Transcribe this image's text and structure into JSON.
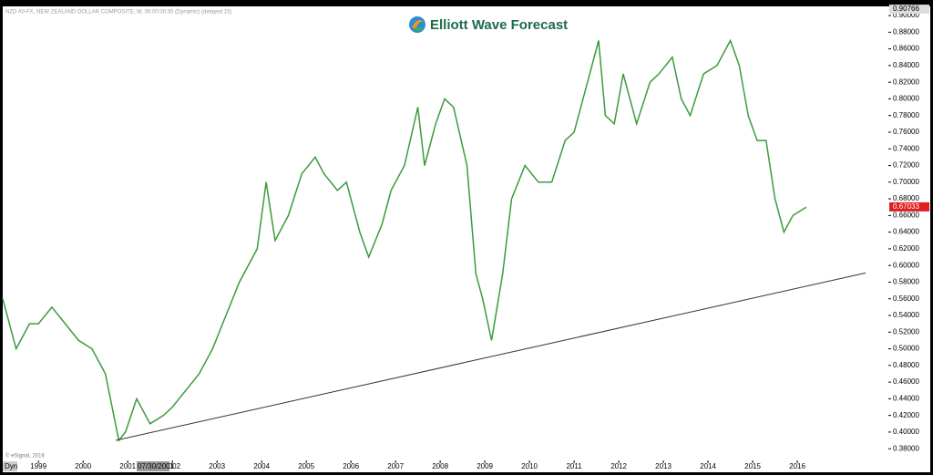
{
  "chart_data": {
    "type": "line",
    "header": "NZD A0-FX, NEW ZEALAND DOLLAR COMPOSITE, W, 00:00:00.00 (Dynamic) (delayed 15)",
    "logo": "Elliott Wave Forecast",
    "copyright": "© eSignal, 2016",
    "corner_label": "Dyn",
    "cursor_date": "07/30/2001",
    "top_price_label": {
      "value": 0.90766,
      "label": "0.90766"
    },
    "last_price_label": {
      "value": 0.67033,
      "label": "0.67033"
    },
    "xlim": [
      1998.2,
      2018.04
    ],
    "xticks": [
      1999,
      2000,
      2001,
      2002,
      2003,
      2004,
      2005,
      2006,
      2007,
      2008,
      2009,
      2010,
      2011,
      2012,
      2013,
      2014,
      2015,
      2016
    ],
    "ylim": [
      0.366,
      0.911
    ],
    "yticks": [
      {
        "value": 0.38,
        "label": "0.38000"
      },
      {
        "value": 0.4,
        "label": "0.40000"
      },
      {
        "value": 0.42,
        "label": "0.42000"
      },
      {
        "value": 0.44,
        "label": "0.44000"
      },
      {
        "value": 0.46,
        "label": "0.46000"
      },
      {
        "value": 0.48,
        "label": "0.48000"
      },
      {
        "value": 0.5,
        "label": "0.50000"
      },
      {
        "value": 0.52,
        "label": "0.52000"
      },
      {
        "value": 0.54,
        "label": "0.54000"
      },
      {
        "value": 0.56,
        "label": "0.56000"
      },
      {
        "value": 0.58,
        "label": "0.58000"
      },
      {
        "value": 0.6,
        "label": "0.60000"
      },
      {
        "value": 0.62,
        "label": "0.62000"
      },
      {
        "value": 0.64,
        "label": "0.64000"
      },
      {
        "value": 0.66,
        "label": "0.66000"
      },
      {
        "value": 0.68,
        "label": "0.68000"
      },
      {
        "value": 0.7,
        "label": "0.70000"
      },
      {
        "value": 0.72,
        "label": "0.72000"
      },
      {
        "value": 0.74,
        "label": "0.74000"
      },
      {
        "value": 0.76,
        "label": "0.76000"
      },
      {
        "value": 0.78,
        "label": "0.78000"
      },
      {
        "value": 0.8,
        "label": "0.80000"
      },
      {
        "value": 0.82,
        "label": "0.82000"
      },
      {
        "value": 0.84,
        "label": "0.84000"
      },
      {
        "value": 0.86,
        "label": "0.86000"
      },
      {
        "value": 0.88,
        "label": "0.88000"
      },
      {
        "value": 0.9,
        "label": "0.90000"
      }
    ],
    "x": [
      1998.2,
      1998.5,
      1998.8,
      1999.0,
      1999.3,
      1999.6,
      1999.9,
      2000.2,
      2000.5,
      2000.8,
      2000.95,
      2001.2,
      2001.5,
      2001.8,
      2002.0,
      2002.3,
      2002.6,
      2002.9,
      2003.2,
      2003.5,
      2003.9,
      2004.1,
      2004.3,
      2004.6,
      2004.9,
      2005.2,
      2005.4,
      2005.7,
      2005.9,
      2006.2,
      2006.4,
      2006.7,
      2006.9,
      2007.2,
      2007.5,
      2007.65,
      2007.9,
      2008.1,
      2008.3,
      2008.6,
      2008.8,
      2008.95,
      2009.15,
      2009.4,
      2009.6,
      2009.9,
      2010.2,
      2010.5,
      2010.8,
      2011.0,
      2011.3,
      2011.55,
      2011.7,
      2011.9,
      2012.1,
      2012.4,
      2012.7,
      2012.9,
      2013.2,
      2013.4,
      2013.6,
      2013.9,
      2014.2,
      2014.5,
      2014.7,
      2014.9,
      2015.1,
      2015.3,
      2015.5,
      2015.7,
      2015.9,
      2016.2
    ],
    "series": [
      {
        "color": "#3c9a3c",
        "values": [
          0.56,
          0.5,
          0.53,
          0.53,
          0.55,
          0.53,
          0.51,
          0.5,
          0.47,
          0.39,
          0.4,
          0.44,
          0.41,
          0.42,
          0.43,
          0.45,
          0.47,
          0.5,
          0.54,
          0.58,
          0.62,
          0.7,
          0.63,
          0.66,
          0.71,
          0.73,
          0.71,
          0.69,
          0.7,
          0.64,
          0.61,
          0.65,
          0.69,
          0.72,
          0.79,
          0.72,
          0.77,
          0.8,
          0.79,
          0.72,
          0.59,
          0.56,
          0.51,
          0.59,
          0.68,
          0.72,
          0.7,
          0.7,
          0.75,
          0.76,
          0.82,
          0.87,
          0.78,
          0.77,
          0.83,
          0.77,
          0.82,
          0.83,
          0.85,
          0.8,
          0.78,
          0.83,
          0.84,
          0.87,
          0.84,
          0.78,
          0.75,
          0.75,
          0.68,
          0.64,
          0.66,
          0.67
        ]
      }
    ],
    "trendline": {
      "x": [
        2000.73,
        2017.53
      ],
      "values": [
        0.39,
        0.591
      ],
      "color": "#333333"
    }
  }
}
